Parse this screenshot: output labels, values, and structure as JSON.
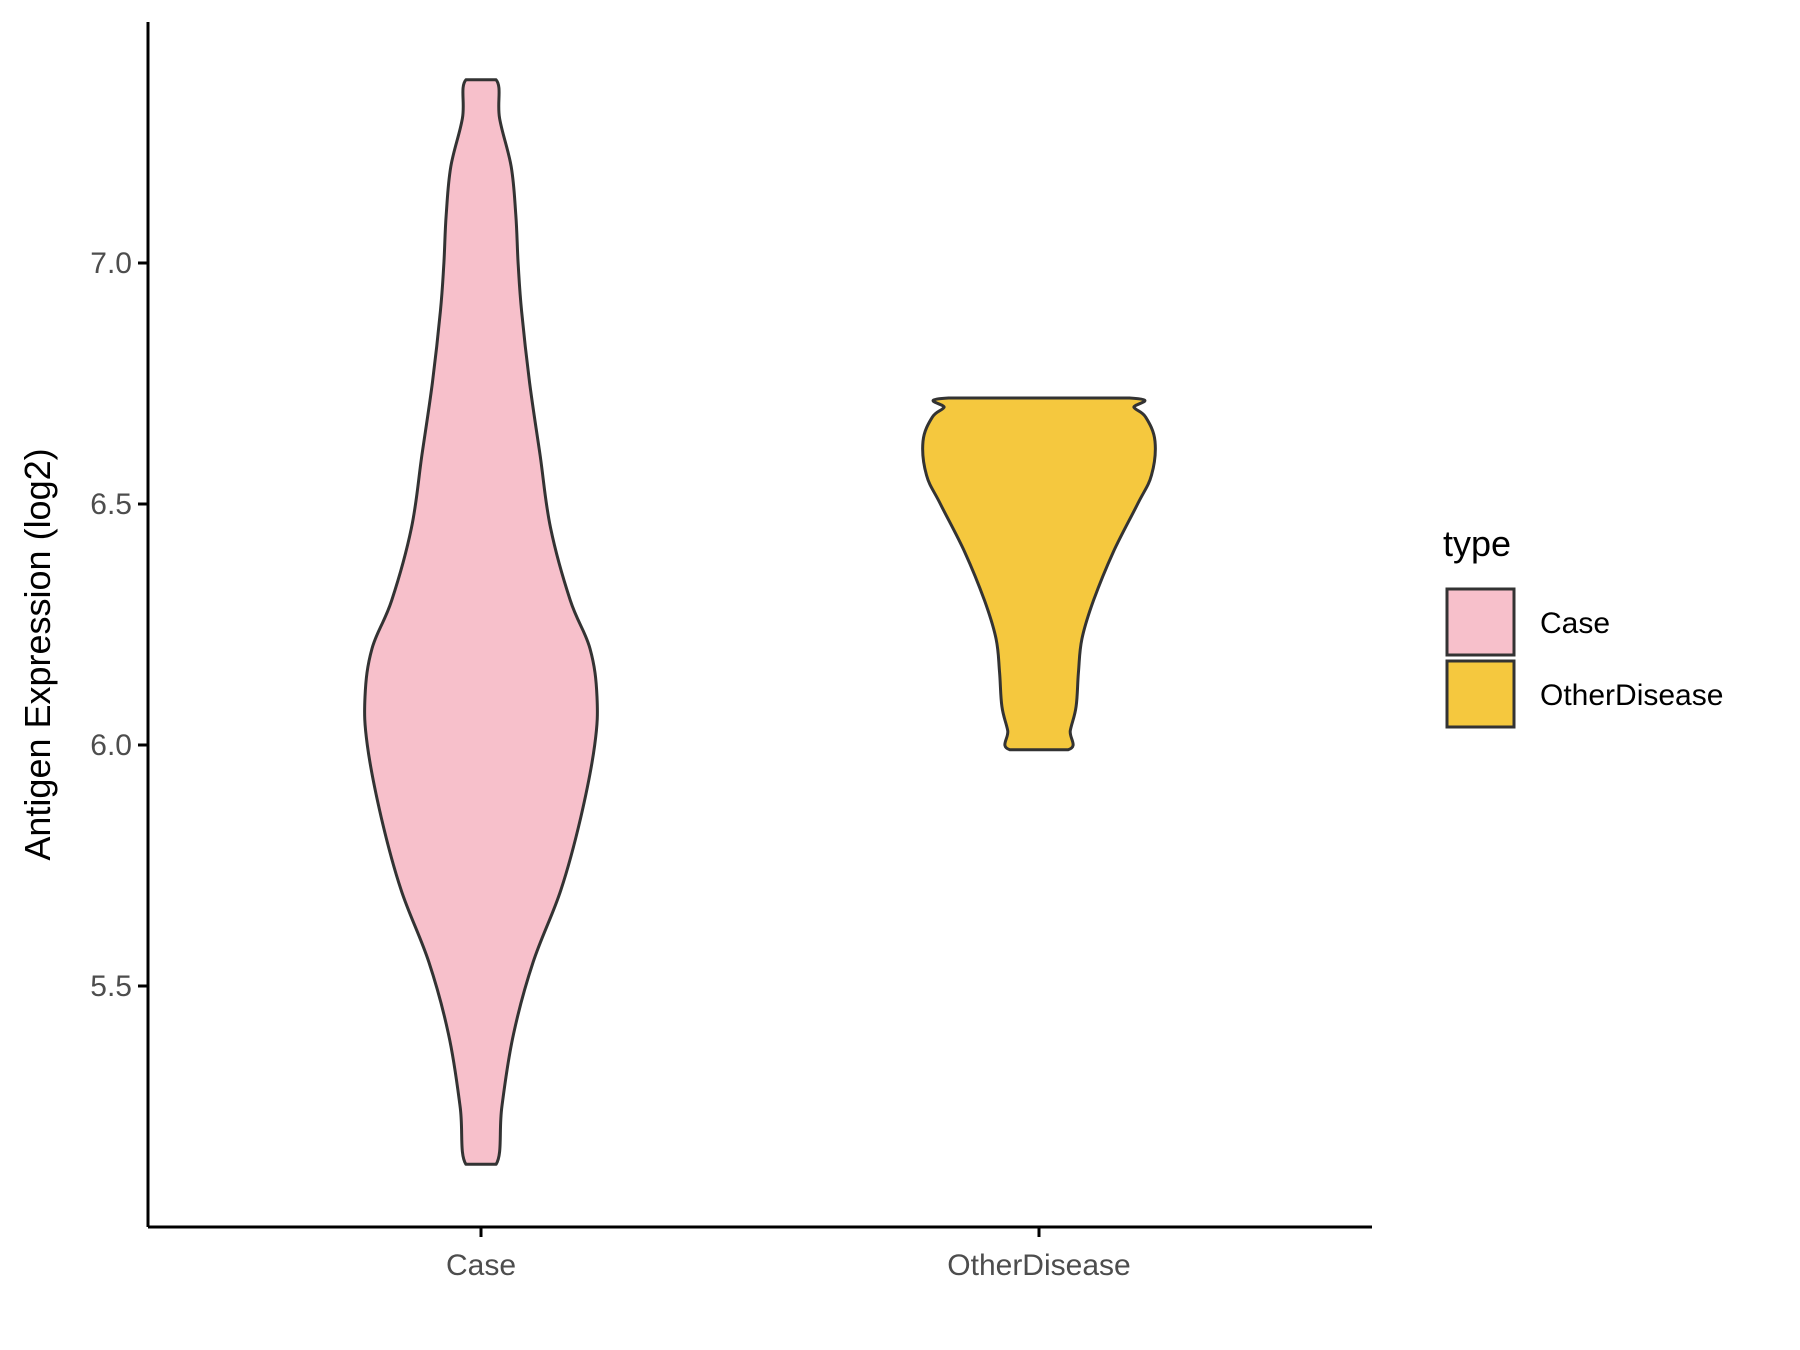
{
  "chart_data": {
    "type": "violin",
    "title": "",
    "xlabel": "",
    "ylabel": "Antigen Expression (log2)",
    "ylim": [
      5.0,
      7.5
    ],
    "yticks": [
      "5.5",
      "6.0",
      "6.5",
      "7.0"
    ],
    "grid": false,
    "legend": {
      "title": "type",
      "position": "right",
      "entries": [
        "Case",
        "OtherDisease"
      ]
    },
    "categories": [
      "Case",
      "OtherDisease"
    ],
    "series": [
      {
        "name": "Case",
        "color": "#F7C0CB",
        "min": 5.13,
        "max": 7.38,
        "density": [
          [
            5.13,
            0.13
          ],
          [
            5.25,
            0.18
          ],
          [
            5.4,
            0.28
          ],
          [
            5.55,
            0.45
          ],
          [
            5.7,
            0.69
          ],
          [
            5.85,
            0.86
          ],
          [
            6.0,
            0.98
          ],
          [
            6.1,
            1.0
          ],
          [
            6.2,
            0.94
          ],
          [
            6.3,
            0.77
          ],
          [
            6.45,
            0.6
          ],
          [
            6.6,
            0.51
          ],
          [
            6.75,
            0.42
          ],
          [
            6.9,
            0.35
          ],
          [
            7.0,
            0.32
          ],
          [
            7.1,
            0.3
          ],
          [
            7.2,
            0.26
          ],
          [
            7.3,
            0.16
          ],
          [
            7.38,
            0.13
          ]
        ]
      },
      {
        "name": "OtherDisease",
        "color": "#F5C83E",
        "min": 5.99,
        "max": 6.72,
        "density": [
          [
            5.99,
            0.25
          ],
          [
            6.03,
            0.27
          ],
          [
            6.08,
            0.32
          ],
          [
            6.15,
            0.34
          ],
          [
            6.22,
            0.37
          ],
          [
            6.3,
            0.47
          ],
          [
            6.4,
            0.64
          ],
          [
            6.5,
            0.85
          ],
          [
            6.56,
            0.97
          ],
          [
            6.63,
            1.0
          ],
          [
            6.68,
            0.92
          ],
          [
            6.7,
            0.82
          ],
          [
            6.72,
            0.78
          ]
        ]
      }
    ],
    "colors": {
      "outline": "#333333",
      "axis": "#000000",
      "tick_text": "#4d4d4d"
    }
  }
}
